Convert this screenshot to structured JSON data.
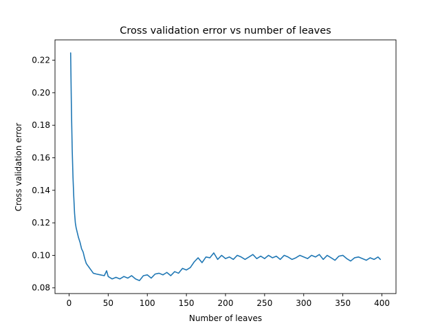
{
  "chart_data": {
    "type": "line",
    "title": "Cross validation error vs number of leaves",
    "xlabel": "Number of leaves",
    "ylabel": "Cross validation error",
    "xlim": [
      -18,
      418
    ],
    "ylim": [
      0.0765,
      0.2325
    ],
    "xticks": [
      0,
      50,
      100,
      150,
      200,
      250,
      300,
      350,
      400
    ],
    "yticks": [
      0.08,
      0.1,
      0.12,
      0.14,
      0.16,
      0.18,
      0.2,
      0.22
    ],
    "ytick_labels": [
      "0.08",
      "0.10",
      "0.12",
      "0.14",
      "0.16",
      "0.18",
      "0.20",
      "0.22"
    ],
    "grid": false,
    "series": [
      {
        "color": "#1f77b4",
        "x": [
          2,
          3,
          4,
          5,
          6,
          7,
          8,
          9,
          10,
          12,
          14,
          16,
          18,
          20,
          22,
          25,
          28,
          31,
          35,
          40,
          45,
          48,
          50,
          55,
          60,
          65,
          70,
          75,
          80,
          85,
          90,
          95,
          100,
          105,
          110,
          115,
          120,
          125,
          130,
          135,
          140,
          145,
          150,
          155,
          160,
          165,
          170,
          175,
          180,
          185,
          190,
          195,
          200,
          205,
          210,
          215,
          220,
          225,
          230,
          235,
          240,
          245,
          250,
          255,
          260,
          265,
          270,
          275,
          280,
          285,
          290,
          295,
          300,
          305,
          310,
          315,
          320,
          325,
          330,
          335,
          340,
          345,
          350,
          355,
          360,
          365,
          370,
          375,
          380,
          385,
          390,
          395,
          398
        ],
        "y": [
          0.2245,
          0.19,
          0.165,
          0.148,
          0.136,
          0.126,
          0.12,
          0.117,
          0.115,
          0.111,
          0.108,
          0.104,
          0.102,
          0.098,
          0.095,
          0.093,
          0.091,
          0.089,
          0.0885,
          0.088,
          0.0875,
          0.0905,
          0.087,
          0.0855,
          0.0865,
          0.0855,
          0.087,
          0.086,
          0.0875,
          0.0855,
          0.0845,
          0.0875,
          0.088,
          0.086,
          0.0885,
          0.089,
          0.088,
          0.0895,
          0.0875,
          0.09,
          0.089,
          0.092,
          0.091,
          0.0925,
          0.096,
          0.0985,
          0.0955,
          0.099,
          0.0985,
          0.1015,
          0.0975,
          0.1,
          0.098,
          0.099,
          0.0975,
          0.1,
          0.099,
          0.0975,
          0.099,
          0.1005,
          0.098,
          0.0995,
          0.098,
          0.1,
          0.0985,
          0.0995,
          0.0975,
          0.1,
          0.099,
          0.0975,
          0.0985,
          0.1,
          0.099,
          0.098,
          0.1,
          0.099,
          0.1005,
          0.0975,
          0.1,
          0.0985,
          0.097,
          0.0995,
          0.1,
          0.098,
          0.0965,
          0.0985,
          0.099,
          0.098,
          0.097,
          0.0985,
          0.0975,
          0.099,
          0.0975
        ]
      }
    ]
  }
}
